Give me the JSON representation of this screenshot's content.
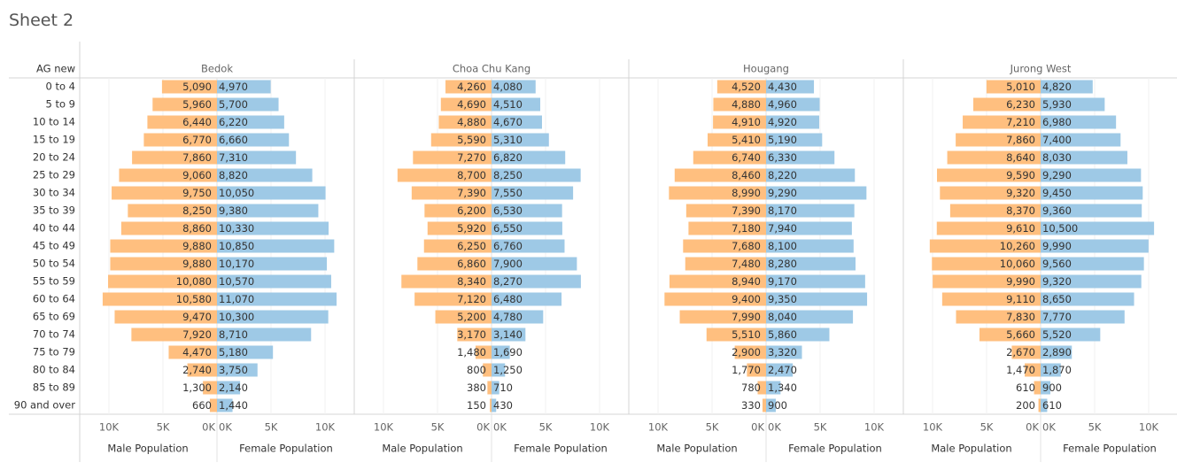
{
  "sheet_title": "Sheet 2",
  "row_header": "AG new",
  "colors": {
    "male": "#ffbf7f",
    "female": "#9ec9e6",
    "grid": "#d4d4d4",
    "axis": "#e3e3e3",
    "text": "#333333",
    "muted": "#666666"
  },
  "chart_data": {
    "type": "bar",
    "title": "",
    "categories": [
      "0 to 4",
      "5 to 9",
      "10 to 14",
      "15 to 19",
      "20 to 24",
      "25 to 29",
      "30 to 34",
      "35 to 39",
      "40 to 44",
      "45 to 49",
      "50 to 54",
      "55 to 59",
      "60 to 64",
      "65 to 69",
      "70 to 74",
      "75 to 79",
      "80 to 84",
      "85 to 89",
      "90 and over"
    ],
    "xlim": [
      0,
      10000
    ],
    "tick_labels": [
      "10K",
      "5K",
      "0K",
      "0K",
      "5K",
      "10K"
    ],
    "axis_titles": {
      "male": "Male Population",
      "female": "Female Population"
    },
    "panels": [
      {
        "name": "Bedok",
        "male": [
          5090,
          5960,
          6440,
          6770,
          7860,
          9060,
          9750,
          8250,
          8860,
          9880,
          9880,
          10080,
          10580,
          9470,
          7920,
          4470,
          2740,
          1300,
          660
        ],
        "female": [
          4970,
          5700,
          6220,
          6660,
          7310,
          8820,
          10050,
          9380,
          10330,
          10850,
          10170,
          10570,
          11070,
          10300,
          8710,
          5180,
          3750,
          2140,
          1440
        ]
      },
      {
        "name": "Choa Chu Kang",
        "male": [
          4260,
          4690,
          4880,
          5590,
          7270,
          8700,
          7390,
          6200,
          5920,
          6250,
          6860,
          8340,
          7120,
          5200,
          3170,
          1480,
          800,
          380,
          150
        ],
        "female": [
          4080,
          4510,
          4670,
          5310,
          6820,
          8250,
          7550,
          6530,
          6550,
          6760,
          7900,
          8270,
          6480,
          4780,
          3140,
          1690,
          1250,
          710,
          430
        ]
      },
      {
        "name": "Hougang",
        "male": [
          4520,
          4880,
          4910,
          5410,
          6740,
          8460,
          8990,
          7390,
          7180,
          7680,
          7480,
          8940,
          9400,
          7990,
          5510,
          2900,
          1770,
          780,
          330
        ],
        "female": [
          4430,
          4960,
          4920,
          5190,
          6330,
          8220,
          9290,
          8170,
          7940,
          8100,
          8280,
          9170,
          9350,
          8040,
          5860,
          3320,
          2470,
          1340,
          900
        ]
      },
      {
        "name": "Jurong West",
        "male": [
          5010,
          6230,
          7210,
          7860,
          8640,
          9590,
          9320,
          8370,
          9610,
          10260,
          10060,
          9990,
          9110,
          7830,
          5660,
          2670,
          1470,
          610,
          200
        ],
        "female": [
          4820,
          5930,
          6980,
          7400,
          8030,
          9290,
          9450,
          9360,
          10500,
          9990,
          9560,
          9320,
          8650,
          7770,
          5520,
          2890,
          1870,
          900,
          610
        ]
      }
    ]
  }
}
